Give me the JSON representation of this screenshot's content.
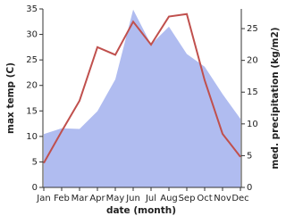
{
  "chart_data": {
    "type": "line",
    "categories": [
      "Jan",
      "Feb",
      "Mar",
      "Apr",
      "May",
      "Jun",
      "Jul",
      "Aug",
      "Sep",
      "Oct",
      "Nov",
      "Dec"
    ],
    "x_label": "date (month)",
    "y_label": "max temp (C)",
    "y2_label": "med. precipitation (kg/m2)",
    "ylim": [
      0,
      35
    ],
    "yticks": [
      0,
      5,
      10,
      15,
      20,
      25,
      30,
      35
    ],
    "y2lim": [
      0,
      28.1
    ],
    "y2ticks": [
      0,
      5,
      10,
      15,
      20,
      25
    ],
    "series": [
      {
        "name": "med. precipitation",
        "type": "area",
        "axis": "y2",
        "color": "#b0bcf0",
        "values": [
          8.4,
          9.3,
          9.2,
          12,
          17,
          28,
          22.5,
          25.3,
          21,
          19,
          14.7,
          10.8
        ]
      },
      {
        "name": "max temp",
        "type": "line",
        "color": "#c0504d",
        "values": [
          4.8,
          11,
          17,
          27.5,
          26,
          32.5,
          28,
          33.5,
          34,
          21,
          10.5,
          6
        ]
      }
    ]
  }
}
